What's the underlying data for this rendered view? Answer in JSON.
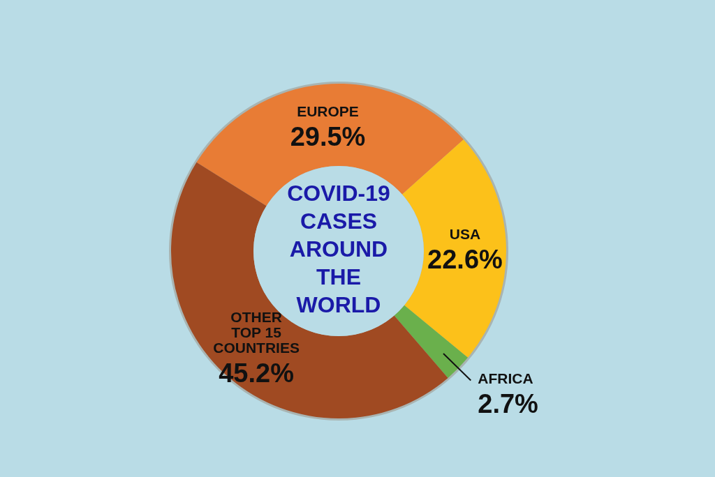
{
  "chart_data": {
    "type": "donut",
    "title": "COVID-19 CASES AROUND THE WORLD",
    "categories": [
      "EUROPE",
      "USA",
      "AFRICA",
      "OTHER TOP 15 COUNTRIES"
    ],
    "values": [
      29.5,
      22.6,
      2.7,
      45.2
    ],
    "value_labels": [
      "29.5%",
      "22.6%",
      "2.7%",
      "45.2%"
    ],
    "colors": [
      "#e87c35",
      "#fcc11a",
      "#6ab04c",
      "#a04a22"
    ]
  }
}
